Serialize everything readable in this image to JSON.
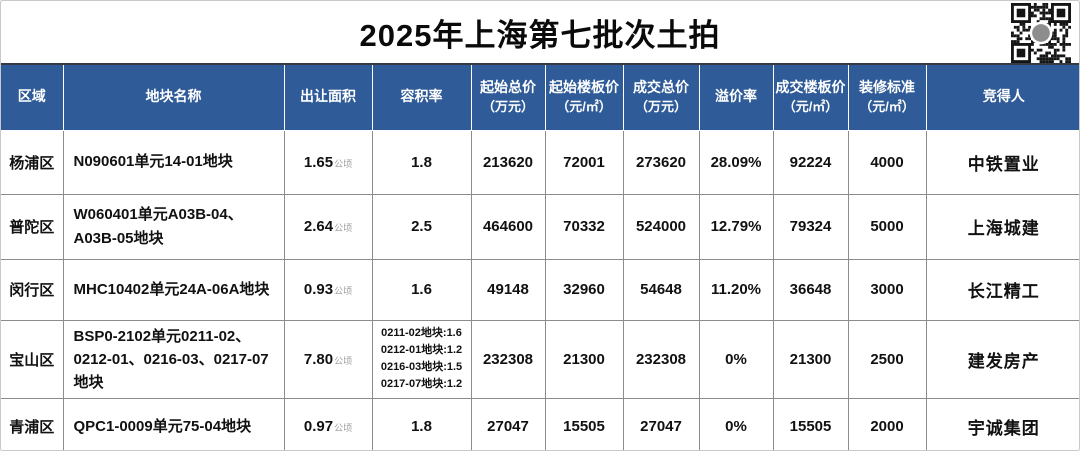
{
  "page": {
    "title": "2025年上海第七批次土拍"
  },
  "colors": {
    "header_bg": "#2f5b98",
    "header_text": "#ffffff",
    "grid_line": "#8c8c8c",
    "title_text": "#0a0a0a",
    "dark_border": "#262626"
  },
  "qr": {
    "name": "qr-code"
  },
  "table": {
    "unit_area": "公顷",
    "headers": [
      {
        "label": "区域",
        "sub": ""
      },
      {
        "label": "地块名称",
        "sub": ""
      },
      {
        "label": "出让面积",
        "sub": ""
      },
      {
        "label": "容积率",
        "sub": ""
      },
      {
        "label": "起始总价",
        "sub": "（万元）"
      },
      {
        "label": "起始楼板价",
        "sub": "（元/㎡）"
      },
      {
        "label": "成交总价",
        "sub": "（万元）"
      },
      {
        "label": "溢价率",
        "sub": ""
      },
      {
        "label": "成交楼板价",
        "sub": "（元/㎡）"
      },
      {
        "label": "装修标准",
        "sub": "（元/㎡）"
      },
      {
        "label": "竞得人",
        "sub": ""
      }
    ],
    "rows": [
      {
        "region": "杨浦区",
        "name": "N090601单元14-01地块",
        "area": "1.65",
        "ratio": "1.8",
        "start_total": "213620",
        "start_floor": "72001",
        "deal_total": "273620",
        "premium": "28.09%",
        "deal_floor": "92224",
        "decoration": "4000",
        "winner": "中铁置业"
      },
      {
        "region": "普陀区",
        "name": "W060401单元A03B-04、A03B-05地块",
        "area": "2.64",
        "ratio": "2.5",
        "start_total": "464600",
        "start_floor": "70332",
        "deal_total": "524000",
        "premium": "12.79%",
        "deal_floor": "79324",
        "decoration": "5000",
        "winner": "上海城建"
      },
      {
        "region": "闵行区",
        "name": "MHC10402单元24A-06A地块",
        "area": "0.93",
        "ratio": "1.6",
        "start_total": "49148",
        "start_floor": "32960",
        "deal_total": "54648",
        "premium": "11.20%",
        "deal_floor": "36648",
        "decoration": "3000",
        "winner": "长江精工"
      },
      {
        "region": "宝山区",
        "name": "BSP0-2102单元0211-02、0212-01、0216-03、0217-07地块",
        "area": "7.80",
        "ratio": [
          "0211-02地块:1.6",
          "0212-01地块:1.2",
          "0216-03地块:1.5",
          "0217-07地块:1.2"
        ],
        "start_total": "232308",
        "start_floor": "21300",
        "deal_total": "232308",
        "premium": "0%",
        "deal_floor": "21300",
        "decoration": "2500",
        "winner": "建发房产"
      },
      {
        "region": "青浦区",
        "name": "QPC1-0009单元75-04地块",
        "area": "0.97",
        "ratio": "1.8",
        "start_total": "27047",
        "start_floor": "15505",
        "deal_total": "27047",
        "premium": "0%",
        "deal_floor": "15505",
        "decoration": "2000",
        "winner": "宇诚集团"
      }
    ]
  },
  "chart_data": {
    "type": "table",
    "title": "2025年上海第七批次土拍",
    "columns": [
      "区域",
      "地块名称",
      "出让面积(公顷)",
      "容积率",
      "起始总价(万元)",
      "起始楼板价(元/㎡)",
      "成交总价(万元)",
      "溢价率",
      "成交楼板价(元/㎡)",
      "装修标准(元/㎡)",
      "竞得人"
    ],
    "rows": [
      [
        "杨浦区",
        "N090601单元14-01地块",
        1.65,
        "1.8",
        213620,
        72001,
        273620,
        "28.09%",
        92224,
        4000,
        "中铁置业"
      ],
      [
        "普陀区",
        "W060401单元A03B-04、A03B-05地块",
        2.64,
        "2.5",
        464600,
        70332,
        524000,
        "12.79%",
        79324,
        5000,
        "上海城建"
      ],
      [
        "闵行区",
        "MHC10402单元24A-06A地块",
        0.93,
        "1.6",
        49148,
        32960,
        54648,
        "11.20%",
        36648,
        3000,
        "长江精工"
      ],
      [
        "宝山区",
        "BSP0-2102单元0211-02、0212-01、0216-03、0217-07地块",
        7.8,
        "0211-02地块:1.6；0212-01地块:1.2；0216-03地块:1.5；0217-07地块:1.2",
        232308,
        21300,
        232308,
        "0%",
        21300,
        2500,
        "建发房产"
      ],
      [
        "青浦区",
        "QPC1-0009单元75-04地块",
        0.97,
        "1.8",
        27047,
        15505,
        27047,
        "0%",
        15505,
        2000,
        "宇诚集团"
      ]
    ]
  }
}
